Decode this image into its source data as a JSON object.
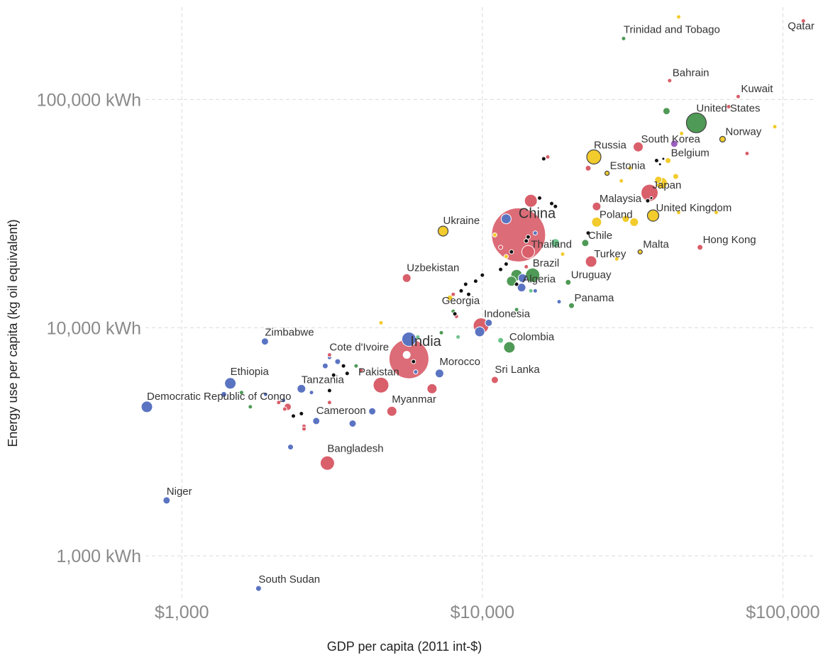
{
  "chart_data": {
    "type": "scatter",
    "xlabel": "GDP per capita (2011 int-$)",
    "ylabel": "Energy use per capita (kg oil equivalent)",
    "x_scale": "log",
    "y_scale": "log",
    "xlim": [
      765,
      122000
    ],
    "ylim": [
      690,
      240000
    ],
    "grid": true,
    "x_ticks": [
      {
        "value": 1000,
        "label": "$1,000"
      },
      {
        "value": 10000,
        "label": "$10,000"
      },
      {
        "value": 100000,
        "label": "$100,000"
      }
    ],
    "y_ticks": [
      {
        "value": 1000,
        "label": "1,000 kWh"
      },
      {
        "value": 10000,
        "label": "10,000 kWh"
      },
      {
        "value": 100000,
        "label": "100,000 kWh"
      }
    ],
    "region_colors": {
      "asia": "#d95f6b",
      "africa": "#5b74c2",
      "europe": "#f2cb2c",
      "americas": "#4e9a56",
      "oceania": "#9b5fc0",
      "other": "#111111"
    },
    "points": [
      {
        "name": "Qatar",
        "x": 117000,
        "y": 221000,
        "size": 3,
        "color": "#d95f6b",
        "label": true
      },
      {
        "name": "Trinidad and Tobago",
        "x": 29500,
        "y": 185000,
        "size": 3,
        "color": "#4e9a56",
        "label": true
      },
      {
        "name": "Bahrain",
        "x": 42000,
        "y": 121000,
        "size": 3,
        "color": "#d95f6b",
        "label": true
      },
      {
        "name": "Kuwait",
        "x": 71000,
        "y": 103000,
        "size": 3,
        "color": "#d95f6b",
        "label": true
      },
      {
        "name": "United States",
        "x": 51500,
        "y": 79000,
        "size": 14,
        "color": "#4e9a56",
        "outlined": true,
        "label": true
      },
      {
        "name": "Norway",
        "x": 63000,
        "y": 67000,
        "size": 4,
        "color": "#f2cb2c",
        "outlined": true,
        "label": true
      },
      {
        "name": "South Korea",
        "x": 33000,
        "y": 62000,
        "size": 7,
        "color": "#d95f6b",
        "label": true
      },
      {
        "name": "Belgium",
        "x": 41500,
        "y": 54000,
        "size": 4,
        "color": "#f2cb2c",
        "label": true
      },
      {
        "name": "Russia",
        "x": 23500,
        "y": 56000,
        "size": 10,
        "color": "#f2cb2c",
        "outlined": true,
        "label": true
      },
      {
        "name": "Estonia",
        "x": 26000,
        "y": 47500,
        "size": 3,
        "color": "#f2cb2c",
        "outlined": true,
        "label": true
      },
      {
        "name": "Japan",
        "x": 36000,
        "y": 39000,
        "size": 12,
        "color": "#d95f6b",
        "label": true
      },
      {
        "name": "Malaysia",
        "x": 24000,
        "y": 34000,
        "size": 6,
        "color": "#d95f6b",
        "label": true
      },
      {
        "name": "United Kingdom",
        "x": 37000,
        "y": 31000,
        "size": 8,
        "color": "#f2cb2c",
        "outlined": true,
        "label": true
      },
      {
        "name": "Poland",
        "x": 24000,
        "y": 29000,
        "size": 7,
        "color": "#f2cb2c",
        "label": true
      },
      {
        "name": "China",
        "x": 13200,
        "y": 25500,
        "size": 38,
        "color": "#d95f6b",
        "label": true,
        "big": true
      },
      {
        "name": "Thailand",
        "x": 14200,
        "y": 21500,
        "size": 9,
        "color": "#d95f6b",
        "label": true
      },
      {
        "name": "Chile",
        "x": 22000,
        "y": 23500,
        "size": 5,
        "color": "#4e9a56",
        "label": true
      },
      {
        "name": "Turkey",
        "x": 23000,
        "y": 19500,
        "size": 8,
        "color": "#d95f6b",
        "label": true
      },
      {
        "name": "Malta",
        "x": 33500,
        "y": 21500,
        "size": 3,
        "color": "#f2cb2c",
        "outlined": true,
        "label": true
      },
      {
        "name": "Hong Kong",
        "x": 53000,
        "y": 22500,
        "size": 4,
        "color": "#d95f6b",
        "label": true
      },
      {
        "name": "Ukraine",
        "x": 7400,
        "y": 26500,
        "size": 7,
        "color": "#f2cb2c",
        "outlined": true,
        "label": true
      },
      {
        "name": "Brazil",
        "x": 14700,
        "y": 17000,
        "size": 10,
        "color": "#4e9a56",
        "label": true
      },
      {
        "name": "Algeria",
        "x": 13600,
        "y": 16500,
        "size": 6,
        "color": "#5b74c2",
        "label": true
      },
      {
        "name": "Uruguay",
        "x": 19300,
        "y": 15800,
        "size": 4,
        "color": "#4e9a56",
        "label": true
      },
      {
        "name": "Uzbekistan",
        "x": 5600,
        "y": 16500,
        "size": 6,
        "color": "#d95f6b",
        "label": true
      },
      {
        "name": "Georgia",
        "x": 8000,
        "y": 14000,
        "size": 3,
        "color": "#d95f6b",
        "label": true
      },
      {
        "name": "Panama",
        "x": 19800,
        "y": 12500,
        "size": 4,
        "color": "#4e9a56",
        "label": true
      },
      {
        "name": "Indonesia",
        "x": 9900,
        "y": 10200,
        "size": 11,
        "color": "#d95f6b",
        "label": true
      },
      {
        "name": "Colombia",
        "x": 12300,
        "y": 8200,
        "size": 8,
        "color": "#4e9a56",
        "label": true
      },
      {
        "name": "India",
        "x": 5700,
        "y": 7300,
        "size": 28,
        "color": "#d95f6b",
        "label": true,
        "big": true
      },
      {
        "name": "Pakistan",
        "x": 4600,
        "y": 5600,
        "size": 11,
        "color": "#d95f6b",
        "label": true
      },
      {
        "name": "Morocco",
        "x": 7200,
        "y": 6300,
        "size": 6,
        "color": "#5b74c2",
        "label": true
      },
      {
        "name": "Sri Lanka",
        "x": 11000,
        "y": 5900,
        "size": 5,
        "color": "#d95f6b",
        "label": true
      },
      {
        "name": "Cote d'Ivoire",
        "x": 3100,
        "y": 7400,
        "size": 3,
        "color": "#5b74c2",
        "label": true
      },
      {
        "name": "Myanmar",
        "x": 5000,
        "y": 4300,
        "size": 7,
        "color": "#d95f6b",
        "label": true
      },
      {
        "name": "Cameroon",
        "x": 2800,
        "y": 3900,
        "size": 5,
        "color": "#5b74c2",
        "label": true
      },
      {
        "name": "Tanzania",
        "x": 2500,
        "y": 5400,
        "size": 6,
        "color": "#5b74c2",
        "label": true
      },
      {
        "name": "Ethiopia",
        "x": 1450,
        "y": 5700,
        "size": 8,
        "color": "#5b74c2",
        "label": true
      },
      {
        "name": "Zimbabwe",
        "x": 1890,
        "y": 8700,
        "size": 5,
        "color": "#5b74c2",
        "label": true
      },
      {
        "name": "Democratic Republic of Congo",
        "x": 765,
        "y": 4500,
        "size": 8,
        "color": "#5b74c2",
        "label": true
      },
      {
        "name": "Bangladesh",
        "x": 3050,
        "y": 2550,
        "size": 10,
        "color": "#d95f6b",
        "label": true
      },
      {
        "name": "Niger",
        "x": 890,
        "y": 1750,
        "size": 5,
        "color": "#5b74c2",
        "label": true
      },
      {
        "name": "South Sudan",
        "x": 1800,
        "y": 720,
        "size": 4,
        "color": "#5b74c2",
        "label": true
      }
    ],
    "minor_points": [
      {
        "x": 45000,
        "y": 230000,
        "size": 3,
        "color": "#f2cb2c"
      },
      {
        "x": 94000,
        "y": 76000,
        "size": 3,
        "color": "#f2cb2c"
      },
      {
        "x": 76000,
        "y": 58000,
        "size": 3,
        "color": "#d95f6b"
      },
      {
        "x": 41000,
        "y": 89000,
        "size": 5,
        "color": "#4e9a56"
      },
      {
        "x": 66000,
        "y": 93000,
        "size": 3,
        "color": "#d95f6b"
      },
      {
        "x": 43500,
        "y": 64000,
        "size": 5,
        "color": "#9b5fc0"
      },
      {
        "x": 46000,
        "y": 71000,
        "size": 3,
        "color": "#f2cb2c"
      },
      {
        "x": 38000,
        "y": 54000,
        "size": 3,
        "color": "#111111"
      },
      {
        "x": 40000,
        "y": 55000,
        "size": 2,
        "color": "#111111"
      },
      {
        "x": 39000,
        "y": 52000,
        "size": 2,
        "color": "#111111"
      },
      {
        "x": 39500,
        "y": 43000,
        "size": 8,
        "color": "#f2cb2c"
      },
      {
        "x": 38500,
        "y": 44500,
        "size": 5,
        "color": "#f2cb2c"
      },
      {
        "x": 44000,
        "y": 46000,
        "size": 4,
        "color": "#f2cb2c"
      },
      {
        "x": 35500,
        "y": 36000,
        "size": 3,
        "color": "#111111"
      },
      {
        "x": 36500,
        "y": 37000,
        "size": 2,
        "color": "#111111"
      },
      {
        "x": 30000,
        "y": 30000,
        "size": 5,
        "color": "#f2cb2c"
      },
      {
        "x": 32000,
        "y": 29000,
        "size": 6,
        "color": "#f2cb2c"
      },
      {
        "x": 29000,
        "y": 44000,
        "size": 3,
        "color": "#f2cb2c"
      },
      {
        "x": 31000,
        "y": 50000,
        "size": 3,
        "color": "#f2cb2c"
      },
      {
        "x": 45000,
        "y": 32000,
        "size": 3,
        "color": "#f2cb2c"
      },
      {
        "x": 60000,
        "y": 32000,
        "size": 3,
        "color": "#f2cb2c"
      },
      {
        "x": 28000,
        "y": 20000,
        "size": 3,
        "color": "#f2cb2c"
      },
      {
        "x": 22500,
        "y": 50000,
        "size": 4,
        "color": "#d95f6b"
      },
      {
        "x": 16000,
        "y": 55000,
        "size": 3,
        "color": "#111111"
      },
      {
        "x": 16500,
        "y": 56000,
        "size": 3,
        "color": "#d95f6b"
      },
      {
        "x": 17000,
        "y": 35000,
        "size": 3,
        "color": "#111111"
      },
      {
        "x": 17500,
        "y": 34000,
        "size": 3,
        "color": "#111111"
      },
      {
        "x": 15500,
        "y": 37000,
        "size": 3,
        "color": "#111111"
      },
      {
        "x": 14500,
        "y": 36000,
        "size": 9,
        "color": "#d95f6b"
      },
      {
        "x": 15000,
        "y": 26000,
        "size": 3,
        "color": "#5b74c2"
      },
      {
        "x": 12000,
        "y": 30000,
        "size": 7,
        "color": "#5b74c2"
      },
      {
        "x": 14000,
        "y": 24000,
        "size": 3,
        "color": "#111111"
      },
      {
        "x": 14200,
        "y": 25000,
        "size": 3,
        "color": "#111111"
      },
      {
        "x": 12500,
        "y": 21500,
        "size": 3,
        "color": "#111111"
      },
      {
        "x": 12000,
        "y": 20500,
        "size": 3,
        "color": "#f2cb2c"
      },
      {
        "x": 11500,
        "y": 22500,
        "size": 3,
        "color": "#d95f6b"
      },
      {
        "x": 11000,
        "y": 25500,
        "size": 3,
        "color": "#f2cb2c"
      },
      {
        "x": 17500,
        "y": 23500,
        "size": 6,
        "color": "#6cc48b"
      },
      {
        "x": 18500,
        "y": 21000,
        "size": 3,
        "color": "#f2cb2c"
      },
      {
        "x": 22500,
        "y": 26000,
        "size": 3,
        "color": "#111111"
      },
      {
        "x": 14000,
        "y": 18500,
        "size": 3,
        "color": "#d95f6b"
      },
      {
        "x": 13000,
        "y": 17000,
        "size": 8,
        "color": "#4e9a56"
      },
      {
        "x": 12500,
        "y": 16000,
        "size": 7,
        "color": "#4e9a56"
      },
      {
        "x": 13500,
        "y": 15000,
        "size": 6,
        "color": "#5b74c2"
      },
      {
        "x": 13000,
        "y": 15500,
        "size": 3,
        "color": "#111111"
      },
      {
        "x": 14500,
        "y": 14500,
        "size": 3,
        "color": "#6cc48b"
      },
      {
        "x": 15000,
        "y": 14500,
        "size": 3,
        "color": "#5b74c2"
      },
      {
        "x": 12000,
        "y": 19000,
        "size": 3,
        "color": "#111111"
      },
      {
        "x": 11500,
        "y": 18000,
        "size": 3,
        "color": "#111111"
      },
      {
        "x": 10000,
        "y": 17000,
        "size": 3,
        "color": "#111111"
      },
      {
        "x": 9500,
        "y": 16000,
        "size": 3,
        "color": "#111111"
      },
      {
        "x": 8800,
        "y": 15500,
        "size": 3,
        "color": "#111111"
      },
      {
        "x": 8500,
        "y": 14500,
        "size": 3,
        "color": "#111111"
      },
      {
        "x": 9000,
        "y": 14000,
        "size": 3,
        "color": "#111111"
      },
      {
        "x": 7800,
        "y": 13500,
        "size": 4,
        "color": "#f2cb2c"
      },
      {
        "x": 13000,
        "y": 12000,
        "size": 3,
        "color": "#4e9a56"
      },
      {
        "x": 18000,
        "y": 13000,
        "size": 3,
        "color": "#5b74c2"
      },
      {
        "x": 8000,
        "y": 11800,
        "size": 3,
        "color": "#4e9a56"
      },
      {
        "x": 8200,
        "y": 11200,
        "size": 3,
        "color": "#d95f6b"
      },
      {
        "x": 8100,
        "y": 11500,
        "size": 3,
        "color": "#111111"
      },
      {
        "x": 10500,
        "y": 10500,
        "size": 5,
        "color": "#5b74c2"
      },
      {
        "x": 9800,
        "y": 9600,
        "size": 7,
        "color": "#5b74c2"
      },
      {
        "x": 7300,
        "y": 9500,
        "size": 3,
        "color": "#4e9a56"
      },
      {
        "x": 8300,
        "y": 9100,
        "size": 3,
        "color": "#6cc48b"
      },
      {
        "x": 11500,
        "y": 8800,
        "size": 4,
        "color": "#6cc48b"
      },
      {
        "x": 5700,
        "y": 8900,
        "size": 10,
        "color": "#5b74c2"
      },
      {
        "x": 6100,
        "y": 9100,
        "size": 3,
        "color": "#6cc48b"
      },
      {
        "x": 4600,
        "y": 10500,
        "size": 3,
        "color": "#f2cb2c"
      },
      {
        "x": 5900,
        "y": 7100,
        "size": 3,
        "color": "#111111"
      },
      {
        "x": 5600,
        "y": 7600,
        "size": 5,
        "color": "#ffffff"
      },
      {
        "x": 6000,
        "y": 6400,
        "size": 3,
        "color": "#5b74c2"
      },
      {
        "x": 6800,
        "y": 5400,
        "size": 7,
        "color": "#d95f6b"
      },
      {
        "x": 3100,
        "y": 7600,
        "size": 3,
        "color": "#d95f6b"
      },
      {
        "x": 3300,
        "y": 7100,
        "size": 4,
        "color": "#5b74c2"
      },
      {
        "x": 3000,
        "y": 6800,
        "size": 4,
        "color": "#5b74c2"
      },
      {
        "x": 3450,
        "y": 6800,
        "size": 3,
        "color": "#111111"
      },
      {
        "x": 3550,
        "y": 6300,
        "size": 3,
        "color": "#111111"
      },
      {
        "x": 3200,
        "y": 6200,
        "size": 3,
        "color": "#111111"
      },
      {
        "x": 3800,
        "y": 6800,
        "size": 3,
        "color": "#4e9a56"
      },
      {
        "x": 3950,
        "y": 6500,
        "size": 3,
        "color": "#d95f6b"
      },
      {
        "x": 3100,
        "y": 5300,
        "size": 3,
        "color": "#111111"
      },
      {
        "x": 3100,
        "y": 4700,
        "size": 3,
        "color": "#d95f6b"
      },
      {
        "x": 2700,
        "y": 5200,
        "size": 3,
        "color": "#5b74c2"
      },
      {
        "x": 1900,
        "y": 5100,
        "size": 3,
        "color": "#5b74c2"
      },
      {
        "x": 2180,
        "y": 4800,
        "size": 3,
        "color": "#5b74c2"
      },
      {
        "x": 2200,
        "y": 4400,
        "size": 3,
        "color": "#d95f6b"
      },
      {
        "x": 2100,
        "y": 4700,
        "size": 3,
        "color": "#d95f6b"
      },
      {
        "x": 2250,
        "y": 4500,
        "size": 5,
        "color": "#d95f6b"
      },
      {
        "x": 1690,
        "y": 4500,
        "size": 3,
        "color": "#4e9a56"
      },
      {
        "x": 1380,
        "y": 5100,
        "size": 4,
        "color": "#5b74c2"
      },
      {
        "x": 1580,
        "y": 5200,
        "size": 3,
        "color": "#4e9a56"
      },
      {
        "x": 2500,
        "y": 4200,
        "size": 3,
        "color": "#111111"
      },
      {
        "x": 2350,
        "y": 4100,
        "size": 3,
        "color": "#111111"
      },
      {
        "x": 2550,
        "y": 3700,
        "size": 3,
        "color": "#d95f6b"
      },
      {
        "x": 2550,
        "y": 3600,
        "size": 3,
        "color": "#d95f6b"
      },
      {
        "x": 4300,
        "y": 4300,
        "size": 5,
        "color": "#5b74c2"
      },
      {
        "x": 3700,
        "y": 3800,
        "size": 5,
        "color": "#5b74c2"
      },
      {
        "x": 2300,
        "y": 3000,
        "size": 4,
        "color": "#5b74c2"
      }
    ]
  }
}
